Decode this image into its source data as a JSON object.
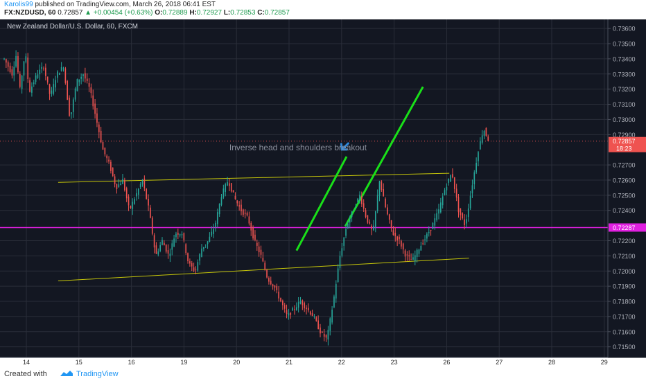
{
  "header": {
    "publisher": "Karolis99",
    "published_text": "published on TradingView.com, March 26, 2018 06:41 EST",
    "symbol": "FX:NZDUSD, 60",
    "last": "0.72857",
    "change": "+0.00454 (+0.63%)",
    "open_label": "O:",
    "open": "0.72889",
    "high_label": "H:",
    "high": "0.72927",
    "low_label": "L:",
    "low": "0.72853",
    "close_label": "C:",
    "close": "0.72857"
  },
  "footer": {
    "created": "Created with",
    "brand": "TradingView"
  },
  "colors": {
    "background": "#131722",
    "grid": "#2a2e39",
    "up": "#26a69a",
    "down": "#ef5350",
    "trendline_yellow": "#c5c50a",
    "level_magenta": "#e020e0",
    "channel_green": "#19e019",
    "arrow_blue": "#2f86d8",
    "price_label_red": "#ef5350",
    "price_label_magenta": "#e020e0",
    "axis_text": "#b2b5be"
  },
  "chart_data": {
    "type": "candlestick",
    "title": "New Zealand Dollar/U.S. Dollar, 60, FXCM",
    "x_tick_labels": [
      "14",
      "15",
      "16",
      "19",
      "20",
      "21",
      "22",
      "23",
      "26",
      "27",
      "28",
      "29"
    ],
    "y_tick_labels": [
      "0.73600",
      "0.73500",
      "0.73400",
      "0.73300",
      "0.73200",
      "0.73100",
      "0.73000",
      "0.72900",
      "0.72700",
      "0.72600",
      "0.72500",
      "0.72400",
      "0.72200",
      "0.72100",
      "0.72000",
      "0.71900",
      "0.71800",
      "0.71700",
      "0.71600",
      "0.71500"
    ],
    "ylim": [
      0.7143,
      0.7366
    ],
    "grid": true,
    "annotation": "Inverse head and shoulders breakout",
    "price_labels": [
      {
        "value": 0.72857,
        "text": "0.72857",
        "sub": "18:23",
        "kind": "current"
      },
      {
        "value": 0.72287,
        "text": "0.72287",
        "kind": "level"
      }
    ],
    "price_path": [
      [
        0.0,
        0.734
      ],
      [
        0.6,
        0.733
      ],
      [
        0.9,
        0.7342
      ],
      [
        1.2,
        0.732
      ],
      [
        1.6,
        0.7345
      ],
      [
        1.9,
        0.7318
      ],
      [
        2.5,
        0.733
      ],
      [
        3.0,
        0.7335
      ],
      [
        3.5,
        0.7315
      ],
      [
        4.0,
        0.733
      ],
      [
        4.5,
        0.7335
      ],
      [
        5.0,
        0.73
      ],
      [
        5.5,
        0.7325
      ],
      [
        6.0,
        0.733
      ],
      [
        6.5,
        0.732
      ],
      [
        7.0,
        0.73
      ],
      [
        7.5,
        0.728
      ],
      [
        8.0,
        0.727
      ],
      [
        8.5,
        0.7255
      ],
      [
        9.0,
        0.726
      ],
      [
        9.5,
        0.724
      ],
      [
        10.0,
        0.725
      ],
      [
        10.5,
        0.726
      ],
      [
        11.0,
        0.724
      ],
      [
        11.5,
        0.721
      ],
      [
        12.0,
        0.722
      ],
      [
        12.5,
        0.721
      ],
      [
        13.0,
        0.7225
      ],
      [
        13.5,
        0.7225
      ],
      [
        14.0,
        0.7205
      ],
      [
        14.5,
        0.72
      ],
      [
        15.0,
        0.7215
      ],
      [
        15.5,
        0.722
      ],
      [
        16.0,
        0.723
      ],
      [
        16.5,
        0.725
      ],
      [
        17.0,
        0.726
      ],
      [
        17.5,
        0.7248
      ],
      [
        18.0,
        0.724
      ],
      [
        18.5,
        0.7235
      ],
      [
        19.0,
        0.722
      ],
      [
        19.5,
        0.721
      ],
      [
        20.0,
        0.7195
      ],
      [
        20.5,
        0.719
      ],
      [
        21.0,
        0.718
      ],
      [
        21.5,
        0.717
      ],
      [
        22.0,
        0.7175
      ],
      [
        22.5,
        0.718
      ],
      [
        23.0,
        0.7175
      ],
      [
        23.5,
        0.717
      ],
      [
        24.0,
        0.716
      ],
      [
        24.5,
        0.7155
      ],
      [
        25.0,
        0.718
      ],
      [
        25.5,
        0.721
      ],
      [
        26.0,
        0.723
      ],
      [
        26.5,
        0.724
      ],
      [
        27.0,
        0.725
      ],
      [
        27.5,
        0.7235
      ],
      [
        28.0,
        0.7225
      ],
      [
        28.5,
        0.726
      ],
      [
        29.0,
        0.724
      ],
      [
        29.5,
        0.7225
      ],
      [
        30.0,
        0.722
      ],
      [
        30.5,
        0.721
      ],
      [
        31.0,
        0.7207
      ],
      [
        31.5,
        0.7215
      ],
      [
        32.0,
        0.7222
      ],
      [
        32.5,
        0.723
      ],
      [
        33.0,
        0.724
      ],
      [
        33.5,
        0.7255
      ],
      [
        34.0,
        0.7265
      ],
      [
        34.5,
        0.724
      ],
      [
        35.0,
        0.723
      ],
      [
        35.5,
        0.7255
      ],
      [
        36.0,
        0.728
      ],
      [
        36.4,
        0.7294
      ],
      [
        36.8,
        0.72857
      ]
    ],
    "drawings": [
      {
        "kind": "trendline",
        "color": "yellow",
        "from": [
          4.1,
          0.72585
        ],
        "to": [
          33.8,
          0.72645
        ]
      },
      {
        "kind": "trendline",
        "color": "yellow",
        "from": [
          4.1,
          0.71935
        ],
        "to": [
          35.3,
          0.72085
        ]
      },
      {
        "kind": "horizontal",
        "color": "magenta",
        "value": 0.72287
      },
      {
        "kind": "trendline",
        "color": "green",
        "from": [
          22.2,
          0.72135
        ],
        "to": [
          26.0,
          0.72755
        ]
      },
      {
        "kind": "trendline",
        "color": "green",
        "from": [
          25.9,
          0.72295
        ],
        "to": [
          31.8,
          0.73215
        ]
      },
      {
        "kind": "arrow",
        "color": "blue",
        "at": [
          25.6,
          0.72815
        ]
      }
    ]
  }
}
